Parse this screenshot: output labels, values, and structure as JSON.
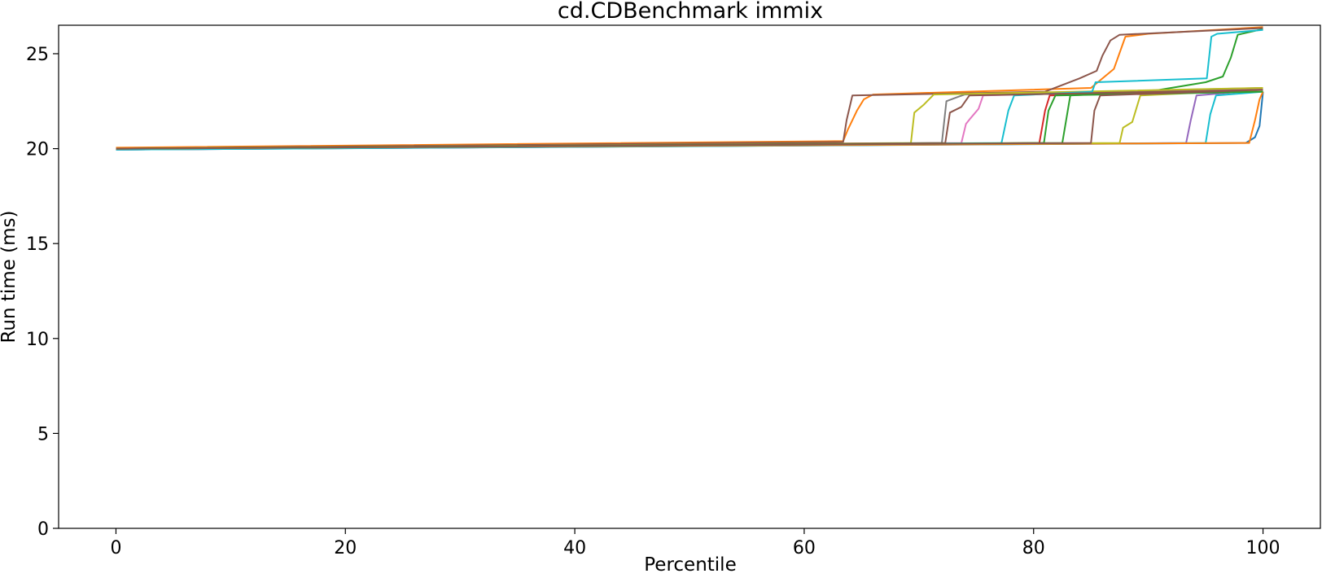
{
  "chart_data": {
    "type": "line",
    "title": "cd.CDBenchmark immix",
    "xlabel": "Percentile",
    "ylabel": "Run time (ms)",
    "xlim": [
      -5,
      105
    ],
    "ylim": [
      0,
      26.5
    ],
    "xticks": [
      0,
      20,
      40,
      60,
      80,
      100
    ],
    "yticks": [
      0,
      5,
      10,
      15,
      20,
      25
    ],
    "grid": false,
    "legend": "none",
    "series": [
      {
        "color": "#1f77b4",
        "x": [
          0,
          98.5,
          99.3,
          99.7,
          100
        ],
        "y": [
          19.95,
          20.3,
          20.6,
          21.2,
          23.0
        ]
      },
      {
        "color": "#ff7f0e",
        "x": [
          0,
          63.4,
          63.8,
          64.6,
          65.2,
          66,
          85,
          87,
          88,
          90,
          100
        ],
        "y": [
          20.05,
          20.4,
          21.0,
          22.0,
          22.6,
          22.85,
          23.2,
          24.2,
          25.9,
          26.05,
          26.4
        ]
      },
      {
        "color": "#2ca02c",
        "x": [
          0,
          82.5,
          83.2,
          90,
          95,
          96.5,
          97.2,
          97.8,
          100
        ],
        "y": [
          19.95,
          20.3,
          22.8,
          23.0,
          23.5,
          23.8,
          24.8,
          26.0,
          26.3
        ]
      },
      {
        "color": "#d62728",
        "x": [
          0,
          80.5,
          81,
          81.4,
          100
        ],
        "y": [
          19.95,
          20.3,
          22.0,
          22.8,
          23.1
        ]
      },
      {
        "color": "#9467bd",
        "x": [
          0,
          93.3,
          93.7,
          94.2,
          100
        ],
        "y": [
          19.95,
          20.3,
          21.5,
          22.8,
          23.1
        ]
      },
      {
        "color": "#8c564b",
        "x": [
          0,
          63.4,
          63.7,
          64.2,
          81,
          84,
          85.5,
          86,
          86.7,
          87.5,
          100
        ],
        "y": [
          20.0,
          20.35,
          21.5,
          22.8,
          23.0,
          23.7,
          24.1,
          24.9,
          25.7,
          26.0,
          26.35
        ]
      },
      {
        "color": "#e377c2",
        "x": [
          0,
          73.7,
          74.1,
          74.5,
          75.2,
          75.6,
          100
        ],
        "y": [
          19.95,
          20.3,
          21.3,
          21.6,
          22.1,
          22.8,
          23.15
        ]
      },
      {
        "color": "#7f7f7f",
        "x": [
          0,
          72.0,
          72.4,
          73.3,
          74,
          100
        ],
        "y": [
          20.0,
          20.3,
          22.5,
          22.7,
          22.85,
          23.2
        ]
      },
      {
        "color": "#bcbd22",
        "x": [
          0,
          69.3,
          69.6,
          70.4,
          71.3,
          100
        ],
        "y": [
          20.0,
          20.3,
          21.9,
          22.3,
          22.85,
          23.2
        ]
      },
      {
        "color": "#17becf",
        "x": [
          0,
          77.2,
          77.8,
          78.3,
          85.1,
          85.4,
          95.1,
          95.5,
          96,
          100
        ],
        "y": [
          19.95,
          20.3,
          22.0,
          22.8,
          23.0,
          23.5,
          23.7,
          25.9,
          26.05,
          26.25
        ]
      },
      {
        "color": "#17becf",
        "x": [
          0,
          95.0,
          95.4,
          95.9,
          100
        ],
        "y": [
          19.95,
          20.3,
          21.8,
          22.8,
          23.0
        ]
      },
      {
        "color": "#ff7f0e",
        "x": [
          0,
          98.8,
          99.3,
          99.7,
          100
        ],
        "y": [
          20.0,
          20.3,
          21.5,
          22.6,
          23.0
        ]
      },
      {
        "color": "#8c564b",
        "x": [
          0,
          72.3,
          72.7,
          73.7,
          74.4,
          100
        ],
        "y": [
          20.0,
          20.3,
          21.9,
          22.2,
          22.8,
          23.1
        ]
      },
      {
        "color": "#bcbd22",
        "x": [
          0,
          87.5,
          87.8,
          88.6,
          89.3,
          100
        ],
        "y": [
          20.0,
          20.3,
          21.1,
          21.4,
          22.8,
          23.1
        ]
      },
      {
        "color": "#2ca02c",
        "x": [
          0,
          80.9,
          81.3,
          81.9,
          100
        ],
        "y": [
          20.0,
          20.3,
          22.0,
          22.8,
          23.0
        ]
      },
      {
        "color": "#8c564b",
        "x": [
          0,
          85.0,
          85.3,
          85.8,
          100
        ],
        "y": [
          20.0,
          20.3,
          22.0,
          22.8,
          23.1
        ]
      }
    ]
  }
}
